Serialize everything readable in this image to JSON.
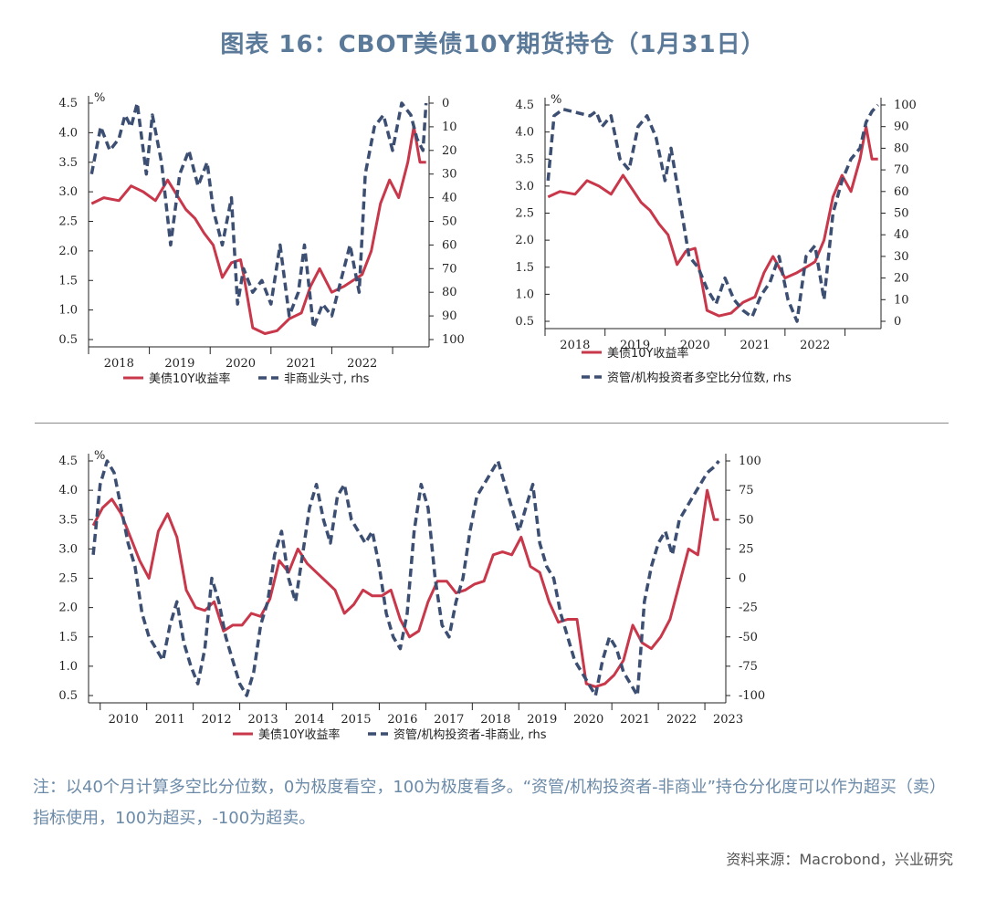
{
  "title": "图表 16：CBOT美债10Y期货持仓（1月31日）",
  "note": "注：以40个月计算多空比分位数，0为极度看空，100为极度看多。“资管/机构投资者-非商业”持仓分化度可以作为超买（卖）指标使用，100为超买，-100为超卖。",
  "source": "资料来源：Macrobond，兴业研究",
  "colors": {
    "red": "#c8374a",
    "blue": "#3c4f73",
    "title": "#5b7a99",
    "note": "#6b8aa8"
  },
  "chart_data": [
    {
      "type": "line",
      "unit_label": "%",
      "left_ticks": [
        "4.5",
        "4.0",
        "3.5",
        "3.0",
        "2.5",
        "2.0",
        "1.5",
        "1.0",
        "0.5"
      ],
      "right_ticks": [
        "0",
        "10",
        "20",
        "30",
        "40",
        "50",
        "60",
        "70",
        "80",
        "90",
        "100"
      ],
      "x_ticks": [
        "2018",
        "2019",
        "2020",
        "2021",
        "2022"
      ],
      "ylim_left": [
        0.5,
        4.5
      ],
      "ylim_right": [
        100,
        0
      ],
      "right_axis_inverted": true,
      "legend": [
        "美债10Y收益率",
        "非商业头寸, rhs"
      ],
      "series": [
        {
          "name": "美债10Y收益率",
          "axis": "left",
          "style": "solid",
          "x": [
            2017.55,
            2017.75,
            2018.0,
            2018.2,
            2018.4,
            2018.6,
            2018.8,
            2018.95,
            2019.1,
            2019.25,
            2019.4,
            2019.55,
            2019.7,
            2019.85,
            2020.0,
            2020.05,
            2020.2,
            2020.4,
            2020.6,
            2020.8,
            2021.0,
            2021.15,
            2021.3,
            2021.5,
            2021.7,
            2021.85,
            2022.0,
            2022.15,
            2022.3,
            2022.45,
            2022.6,
            2022.75,
            2022.85,
            2022.95,
            2023.05
          ],
          "y": [
            2.8,
            2.9,
            2.85,
            3.1,
            3.0,
            2.85,
            3.2,
            2.95,
            2.7,
            2.55,
            2.3,
            2.1,
            1.55,
            1.8,
            1.85,
            1.6,
            0.7,
            0.6,
            0.65,
            0.85,
            0.95,
            1.4,
            1.7,
            1.3,
            1.4,
            1.5,
            1.6,
            2.0,
            2.8,
            3.2,
            2.9,
            3.5,
            4.1,
            3.5,
            3.5
          ]
        },
        {
          "name": "非商业头寸, rhs",
          "axis": "right",
          "style": "dashed",
          "x": [
            2017.55,
            2017.7,
            2017.85,
            2018.0,
            2018.1,
            2018.2,
            2018.3,
            2018.45,
            2018.55,
            2018.7,
            2018.85,
            2019.0,
            2019.15,
            2019.3,
            2019.45,
            2019.55,
            2019.7,
            2019.85,
            2019.95,
            2020.05,
            2020.2,
            2020.35,
            2020.5,
            2020.65,
            2020.8,
            2020.95,
            2021.05,
            2021.2,
            2021.35,
            2021.5,
            2021.65,
            2021.8,
            2021.95,
            2022.05,
            2022.2,
            2022.35,
            2022.5,
            2022.65,
            2022.8,
            2022.9,
            2023.0,
            2023.05
          ],
          "y": [
            30,
            10,
            20,
            15,
            5,
            10,
            0,
            30,
            5,
            25,
            60,
            30,
            20,
            35,
            25,
            45,
            60,
            40,
            85,
            70,
            80,
            75,
            85,
            60,
            90,
            80,
            60,
            95,
            85,
            90,
            75,
            60,
            80,
            30,
            10,
            5,
            20,
            0,
            5,
            15,
            20,
            0
          ]
        }
      ]
    },
    {
      "type": "line",
      "unit_label": "%",
      "left_ticks": [
        "4.5",
        "4.0",
        "3.5",
        "3.0",
        "2.5",
        "2.0",
        "1.5",
        "1.0",
        "0.5"
      ],
      "right_ticks": [
        "100",
        "90",
        "80",
        "70",
        "60",
        "50",
        "40",
        "30",
        "20",
        "10",
        "0"
      ],
      "x_ticks": [
        "2018",
        "2019",
        "2020",
        "2021",
        "2022"
      ],
      "ylim_left": [
        0.5,
        4.5
      ],
      "ylim_right": [
        0,
        100
      ],
      "legend": [
        "美债10Y收益率",
        "资管/机构投资者多空比分位数, rhs"
      ],
      "series": [
        {
          "name": "美债10Y收益率",
          "axis": "left",
          "style": "solid",
          "x": [
            2017.55,
            2017.75,
            2018.0,
            2018.2,
            2018.4,
            2018.6,
            2018.8,
            2018.95,
            2019.1,
            2019.25,
            2019.4,
            2019.55,
            2019.7,
            2019.85,
            2020.0,
            2020.05,
            2020.2,
            2020.4,
            2020.6,
            2020.8,
            2021.0,
            2021.15,
            2021.3,
            2021.5,
            2021.7,
            2021.85,
            2022.0,
            2022.15,
            2022.3,
            2022.45,
            2022.6,
            2022.75,
            2022.85,
            2022.95,
            2023.05
          ],
          "y": [
            2.8,
            2.9,
            2.85,
            3.1,
            3.0,
            2.85,
            3.2,
            2.95,
            2.7,
            2.55,
            2.3,
            2.1,
            1.55,
            1.8,
            1.85,
            1.6,
            0.7,
            0.6,
            0.65,
            0.85,
            0.95,
            1.4,
            1.7,
            1.3,
            1.4,
            1.5,
            1.6,
            2.0,
            2.8,
            3.2,
            2.9,
            3.5,
            4.1,
            3.5,
            3.5
          ]
        },
        {
          "name": "资管/机构投资者多空比分位数, rhs",
          "axis": "right",
          "style": "dashed",
          "x": [
            2017.55,
            2017.65,
            2017.8,
            2017.95,
            2018.1,
            2018.25,
            2018.35,
            2018.45,
            2018.6,
            2018.75,
            2018.9,
            2019.05,
            2019.2,
            2019.35,
            2019.5,
            2019.6,
            2019.75,
            2019.9,
            2020.05,
            2020.2,
            2020.35,
            2020.5,
            2020.65,
            2020.8,
            2020.95,
            2021.1,
            2021.25,
            2021.4,
            2021.55,
            2021.7,
            2021.85,
            2022.0,
            2022.15,
            2022.3,
            2022.45,
            2022.6,
            2022.75,
            2022.85,
            2022.95,
            2023.05
          ],
          "y": [
            65,
            95,
            98,
            97,
            96,
            95,
            97,
            90,
            95,
            75,
            70,
            90,
            95,
            85,
            65,
            80,
            55,
            30,
            25,
            15,
            8,
            20,
            10,
            5,
            2,
            12,
            18,
            30,
            10,
            0,
            30,
            35,
            10,
            50,
            65,
            75,
            80,
            92,
            97,
            100
          ]
        }
      ]
    },
    {
      "type": "line",
      "unit_label": "%",
      "left_ticks": [
        "4.5",
        "4.0",
        "3.5",
        "3.0",
        "2.5",
        "2.0",
        "1.5",
        "1.0",
        "0.5"
      ],
      "right_ticks": [
        "100",
        "75",
        "50",
        "25",
        "0",
        "-25",
        "-50",
        "-75",
        "-100"
      ],
      "x_ticks": [
        "2010",
        "2011",
        "2012",
        "2013",
        "2014",
        "2015",
        "2016",
        "2017",
        "2018",
        "2019",
        "2020",
        "2021",
        "2022",
        "2023"
      ],
      "ylim_left": [
        0.5,
        4.5
      ],
      "ylim_right": [
        -100,
        100
      ],
      "legend": [
        "美债10Y收益率",
        "资管/机构投资者-非商业, rhs"
      ],
      "series": [
        {
          "name": "美债10Y收益率",
          "axis": "left",
          "style": "solid",
          "x": [
            2009.6,
            2009.8,
            2010.0,
            2010.2,
            2010.4,
            2010.6,
            2010.8,
            2011.0,
            2011.2,
            2011.4,
            2011.6,
            2011.8,
            2012.0,
            2012.2,
            2012.4,
            2012.6,
            2012.8,
            2013.0,
            2013.2,
            2013.4,
            2013.6,
            2013.8,
            2014.0,
            2014.2,
            2014.4,
            2014.6,
            2014.8,
            2015.0,
            2015.2,
            2015.4,
            2015.6,
            2015.8,
            2016.0,
            2016.2,
            2016.4,
            2016.6,
            2016.8,
            2017.0,
            2017.2,
            2017.4,
            2017.6,
            2017.8,
            2018.0,
            2018.2,
            2018.4,
            2018.6,
            2018.8,
            2019.0,
            2019.2,
            2019.4,
            2019.6,
            2019.8,
            2020.0,
            2020.2,
            2020.4,
            2020.6,
            2020.8,
            2021.0,
            2021.2,
            2021.4,
            2021.6,
            2021.8,
            2022.0,
            2022.2,
            2022.4,
            2022.6,
            2022.8,
            2022.95,
            2023.05
          ],
          "y": [
            3.4,
            3.7,
            3.85,
            3.6,
            3.2,
            2.8,
            2.5,
            3.3,
            3.6,
            3.2,
            2.3,
            2.0,
            1.95,
            2.1,
            1.6,
            1.7,
            1.7,
            1.9,
            1.85,
            2.15,
            2.8,
            2.6,
            3.0,
            2.75,
            2.6,
            2.45,
            2.3,
            1.9,
            2.05,
            2.3,
            2.2,
            2.2,
            2.3,
            1.8,
            1.5,
            1.6,
            2.1,
            2.45,
            2.45,
            2.25,
            2.3,
            2.4,
            2.45,
            2.9,
            2.95,
            2.9,
            3.2,
            2.7,
            2.6,
            2.1,
            1.75,
            1.8,
            1.8,
            0.7,
            0.65,
            0.7,
            0.85,
            1.1,
            1.7,
            1.4,
            1.3,
            1.5,
            1.8,
            2.4,
            3.0,
            2.9,
            4.0,
            3.5,
            3.5
          ]
        },
        {
          "name": "资管/机构投资者-非商业, rhs",
          "axis": "right",
          "style": "dashed",
          "x": [
            2009.6,
            2009.75,
            2009.9,
            2010.05,
            2010.2,
            2010.35,
            2010.5,
            2010.65,
            2010.8,
            2010.95,
            2011.1,
            2011.25,
            2011.4,
            2011.55,
            2011.7,
            2011.85,
            2012.0,
            2012.15,
            2012.3,
            2012.45,
            2012.6,
            2012.75,
            2012.9,
            2013.05,
            2013.2,
            2013.35,
            2013.5,
            2013.65,
            2013.8,
            2013.95,
            2014.1,
            2014.25,
            2014.4,
            2014.55,
            2014.7,
            2014.85,
            2015.0,
            2015.15,
            2015.3,
            2015.45,
            2015.6,
            2015.75,
            2015.9,
            2016.05,
            2016.2,
            2016.35,
            2016.5,
            2016.65,
            2016.8,
            2016.95,
            2017.1,
            2017.25,
            2017.4,
            2017.55,
            2017.7,
            2017.85,
            2018.0,
            2018.15,
            2018.3,
            2018.45,
            2018.6,
            2018.75,
            2018.9,
            2019.05,
            2019.2,
            2019.35,
            2019.5,
            2019.65,
            2019.8,
            2019.95,
            2020.1,
            2020.25,
            2020.4,
            2020.55,
            2020.7,
            2020.85,
            2021.0,
            2021.15,
            2021.3,
            2021.45,
            2021.6,
            2021.75,
            2021.9,
            2022.05,
            2022.2,
            2022.35,
            2022.5,
            2022.65,
            2022.8,
            2022.95,
            2023.05
          ],
          "y": [
            20,
            80,
            100,
            90,
            60,
            30,
            10,
            -30,
            -50,
            -60,
            -70,
            -40,
            -20,
            -55,
            -75,
            -90,
            -60,
            0,
            -20,
            -50,
            -70,
            -90,
            -100,
            -80,
            -40,
            -20,
            20,
            40,
            0,
            -20,
            20,
            60,
            80,
            50,
            30,
            70,
            80,
            50,
            40,
            30,
            40,
            10,
            -30,
            -50,
            -60,
            -30,
            40,
            80,
            60,
            0,
            -40,
            -50,
            -20,
            0,
            40,
            70,
            80,
            90,
            100,
            80,
            60,
            40,
            60,
            80,
            30,
            10,
            0,
            -30,
            -50,
            -70,
            -80,
            -90,
            -100,
            -70,
            -50,
            -60,
            -80,
            -90,
            -100,
            -20,
            10,
            30,
            40,
            20,
            50,
            60,
            70,
            80,
            90,
            95,
            100
          ]
        }
      ]
    }
  ]
}
